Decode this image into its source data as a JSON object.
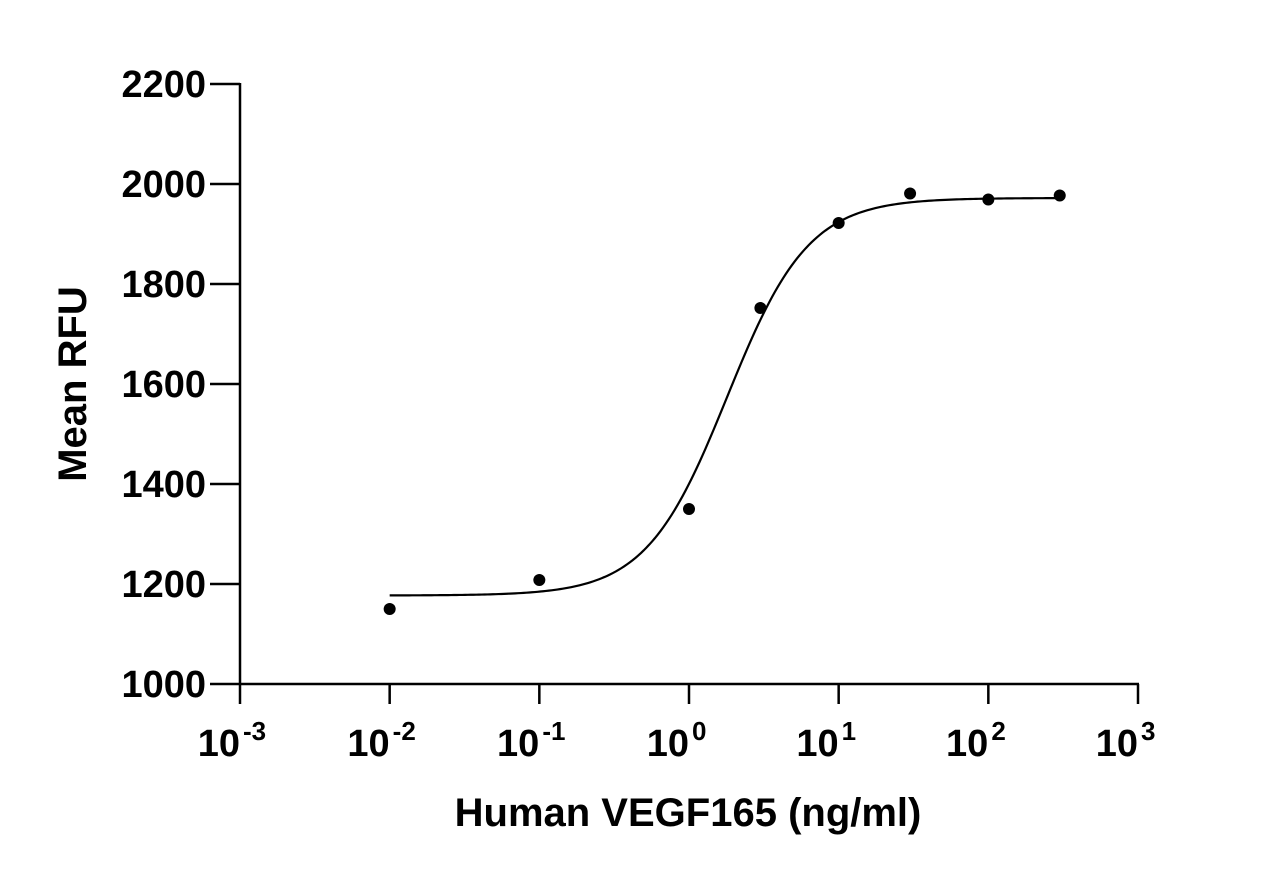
{
  "chart_data": {
    "type": "scatter",
    "title": "",
    "xlabel": "Human VEGF165 (ng/ml)",
    "ylabel": "Mean RFU",
    "x_scale": "log",
    "xlim": [
      0.001,
      1000
    ],
    "ylim": [
      1000,
      2200
    ],
    "grid": false,
    "legend": "none",
    "y_ticks": [
      1000,
      1200,
      1400,
      1600,
      1800,
      2000,
      2200
    ],
    "x_ticks": [
      {
        "base": "10",
        "exp": "-3",
        "value": 0.001
      },
      {
        "base": "10",
        "exp": "-2",
        "value": 0.01
      },
      {
        "base": "10",
        "exp": "-1",
        "value": 0.1
      },
      {
        "base": "10",
        "exp": "0",
        "value": 1
      },
      {
        "base": "10",
        "exp": "1",
        "value": 10
      },
      {
        "base": "10",
        "exp": "2",
        "value": 100
      },
      {
        "base": "10",
        "exp": "3",
        "value": 1000
      }
    ],
    "points": [
      {
        "x": 0.01,
        "y": 1150
      },
      {
        "x": 0.1,
        "y": 1208
      },
      {
        "x": 1,
        "y": 1350
      },
      {
        "x": 3,
        "y": 1752
      },
      {
        "x": 10,
        "y": 1922
      },
      {
        "x": 30,
        "y": 1981
      },
      {
        "x": 100,
        "y": 1969
      },
      {
        "x": 300,
        "y": 1977
      }
    ],
    "fit_curve": {
      "model": "4-parameter logistic",
      "bottom": 1177,
      "top": 1972,
      "ec50": 1.8,
      "hill": 1.6,
      "x_range": [
        0.01,
        300
      ]
    },
    "colors": {
      "axis": "#000000",
      "marker": "#000000",
      "curve": "#000000"
    }
  }
}
